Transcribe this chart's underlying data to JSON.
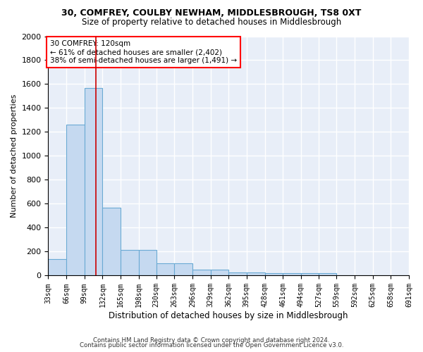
{
  "title1": "30, COMFREY, COULBY NEWHAM, MIDDLESBROUGH, TS8 0XT",
  "title2": "Size of property relative to detached houses in Middlesbrough",
  "xlabel": "Distribution of detached houses by size in Middlesbrough",
  "ylabel": "Number of detached properties",
  "bin_edges": [
    33,
    66,
    99,
    132,
    165,
    198,
    230,
    263,
    296,
    329,
    362,
    395,
    428,
    461,
    494,
    527,
    559,
    592,
    625,
    658,
    691
  ],
  "bar_heights": [
    140,
    1260,
    1570,
    570,
    215,
    215,
    100,
    100,
    50,
    50,
    25,
    25,
    20,
    20,
    20,
    20,
    0,
    0,
    0,
    0
  ],
  "bar_color": "#c5d9f0",
  "bar_edge_color": "#6aaad4",
  "background_color": "#e8eef8",
  "grid_color": "#d0d8e8",
  "red_line_x": 120,
  "annotation_text": "30 COMFREY: 120sqm\n← 61% of detached houses are smaller (2,402)\n38% of semi-detached houses are larger (1,491) →",
  "ylim": [
    0,
    2000
  ],
  "yticks": [
    0,
    200,
    400,
    600,
    800,
    1000,
    1200,
    1400,
    1600,
    1800,
    2000
  ],
  "footer1": "Contains HM Land Registry data © Crown copyright and database right 2024.",
  "footer2": "Contains public sector information licensed under the Open Government Licence v3.0."
}
